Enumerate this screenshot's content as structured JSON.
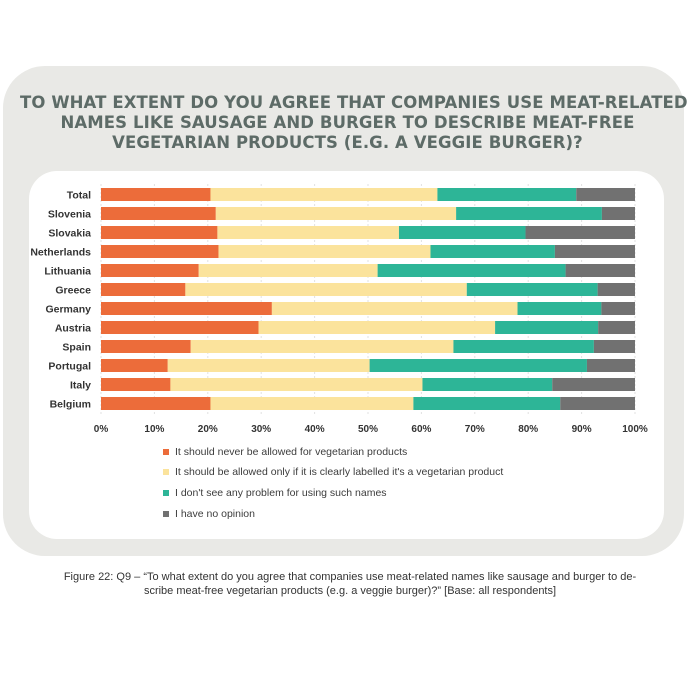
{
  "title_lines": [
    "TO WHAT EXTENT DO YOU AGREE THAT COMPANIES USE MEAT-RELATED",
    "NAMES LIKE SAUSAGE AND BURGER TO DESCRIBE MEAT-FREE",
    "VEGETARIAN PRODUCTS (E.G. A VEGGIE BURGER)?"
  ],
  "caption_lines": [
    "Figure 22: Q9 – “To what extent do you agree that companies use meat-related names like sausage and burger to de-",
    "scribe meat-free vegetarian products (e.g. a veggie burger)?” [Base: all respondents]"
  ],
  "colors": {
    "never": "#ec6c3a",
    "labelled": "#fbe39c",
    "no_problem": "#2db597",
    "no_opinion": "#717171",
    "title": "#5d6b67",
    "card": "#e9e9e6"
  },
  "chart_data": {
    "type": "bar",
    "orientation": "horizontal",
    "stacked": true,
    "categories": [
      "Total",
      "Slovenia",
      "Slovakia",
      "Netherlands",
      "Lithuania",
      "Greece",
      "Germany",
      "Austria",
      "Spain",
      "Portugal",
      "Italy",
      "Belgium"
    ],
    "series": [
      {
        "name": "It should never be allowed for vegetarian products",
        "color": "#ec6c3a",
        "values": [
          20.5,
          21.5,
          21.8,
          22.0,
          18.3,
          15.8,
          32.0,
          29.5,
          16.8,
          12.5,
          13.0,
          20.5
        ]
      },
      {
        "name": "It should be allowed only if it is clearly labelled it's a vegetarian product",
        "color": "#fbe39c",
        "values": [
          42.5,
          45.0,
          34.0,
          39.7,
          33.5,
          52.7,
          46.0,
          44.3,
          49.2,
          37.8,
          47.2,
          38.0
        ]
      },
      {
        "name": "I don't see any problem for using such names",
        "color": "#2db597",
        "values": [
          26.0,
          27.3,
          23.7,
          23.3,
          35.2,
          24.5,
          15.7,
          19.3,
          26.3,
          40.7,
          24.3,
          27.5
        ]
      },
      {
        "name": "I have no opinion",
        "color": "#717171",
        "values": [
          11.0,
          6.2,
          20.5,
          15.0,
          13.0,
          7.0,
          6.3,
          6.9,
          7.7,
          9.0,
          15.5,
          14.0
        ]
      }
    ],
    "xlim": [
      0,
      100
    ],
    "x_ticks": [
      "0%",
      "10%",
      "20%",
      "30%",
      "40%",
      "50%",
      "60%",
      "70%",
      "80%",
      "90%",
      "100%"
    ],
    "grid": "vertical",
    "legend_position": "bottom"
  }
}
